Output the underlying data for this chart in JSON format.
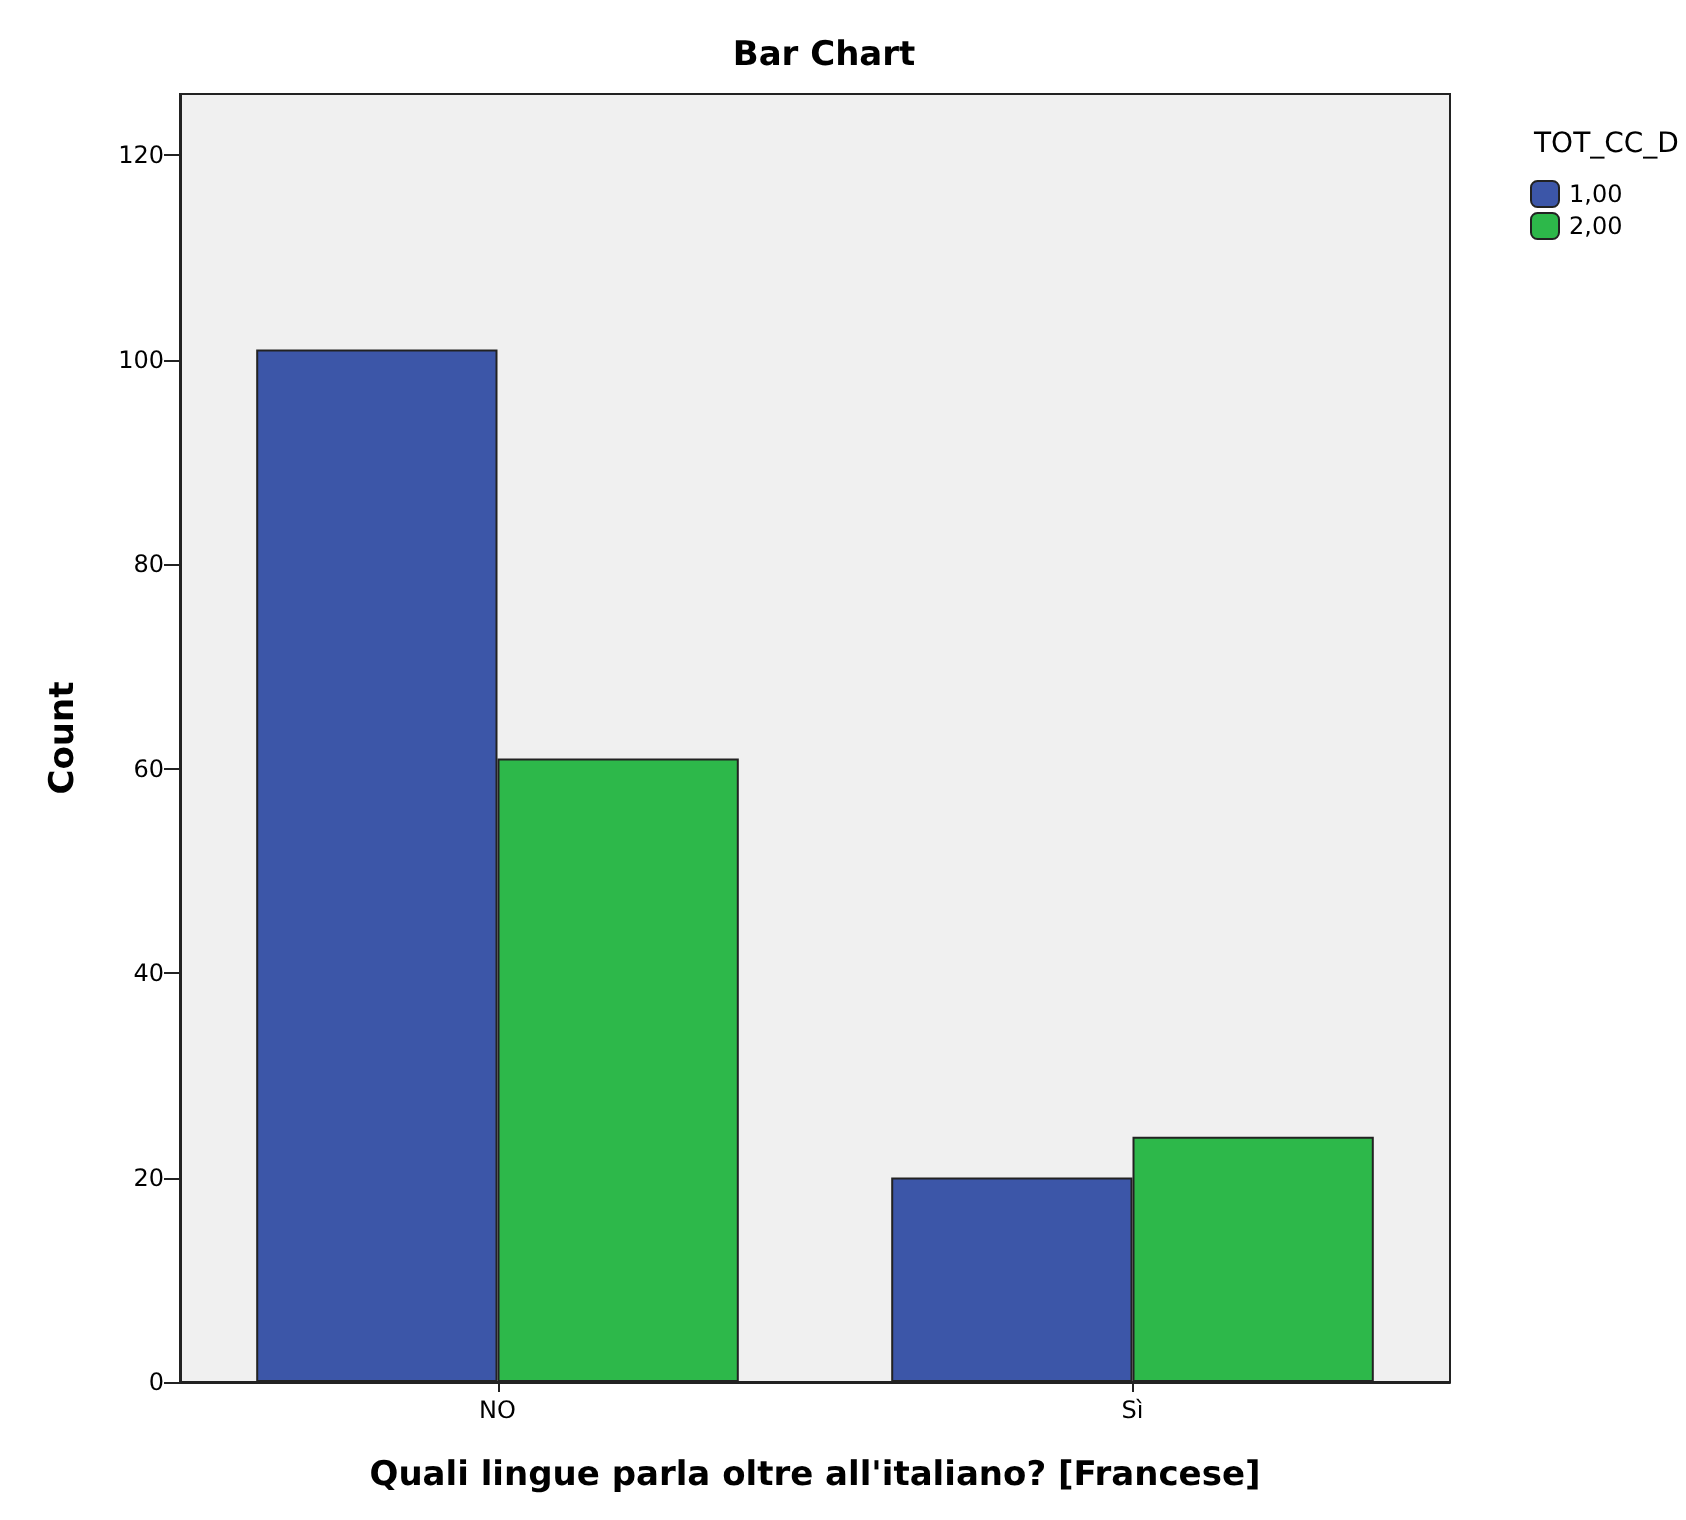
{
  "chart_data": {
    "type": "bar",
    "title": "Bar Chart",
    "xlabel": "Quali lingue parla oltre all'italiano? [Francese]",
    "ylabel": "Count",
    "legend_title": "TOT_CC_D",
    "categories": [
      "NO",
      "Sì"
    ],
    "series": [
      {
        "name": "1,00",
        "color": "#3c56a8",
        "values": [
          101,
          20
        ]
      },
      {
        "name": "2,00",
        "color": "#2db84a",
        "values": [
          61,
          24
        ]
      }
    ],
    "ylim": [
      0,
      126
    ],
    "yticks": [
      0,
      20,
      40,
      60,
      80,
      100,
      120
    ],
    "grid": false,
    "legend": "top right"
  }
}
